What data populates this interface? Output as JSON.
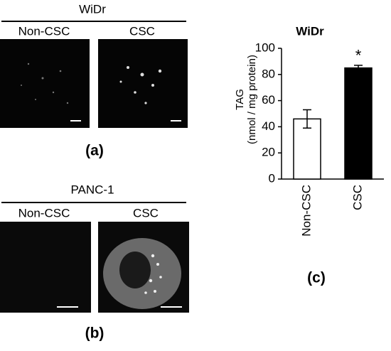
{
  "panel_a": {
    "title": "WiDr",
    "labels": [
      "Non-CSC",
      "CSC"
    ],
    "panel_label": "(a)"
  },
  "panel_b": {
    "title": "PANC-1",
    "labels": [
      "Non-CSC",
      "CSC"
    ],
    "panel_label": "(b)"
  },
  "panel_c_label": "(c)",
  "chart_data": {
    "type": "bar",
    "title": "WiDr",
    "ylabel": [
      "TAG",
      "(nmol / mg protein)"
    ],
    "categories": [
      "Non-CSC",
      "CSC"
    ],
    "values": [
      46,
      85
    ],
    "errors": [
      7,
      2
    ],
    "colors": [
      "#ffffff",
      "#000000"
    ],
    "annotation": "*",
    "ylim": [
      0,
      100
    ],
    "yticks": [
      0,
      20,
      40,
      60,
      80,
      100
    ],
    "grid": false
  }
}
